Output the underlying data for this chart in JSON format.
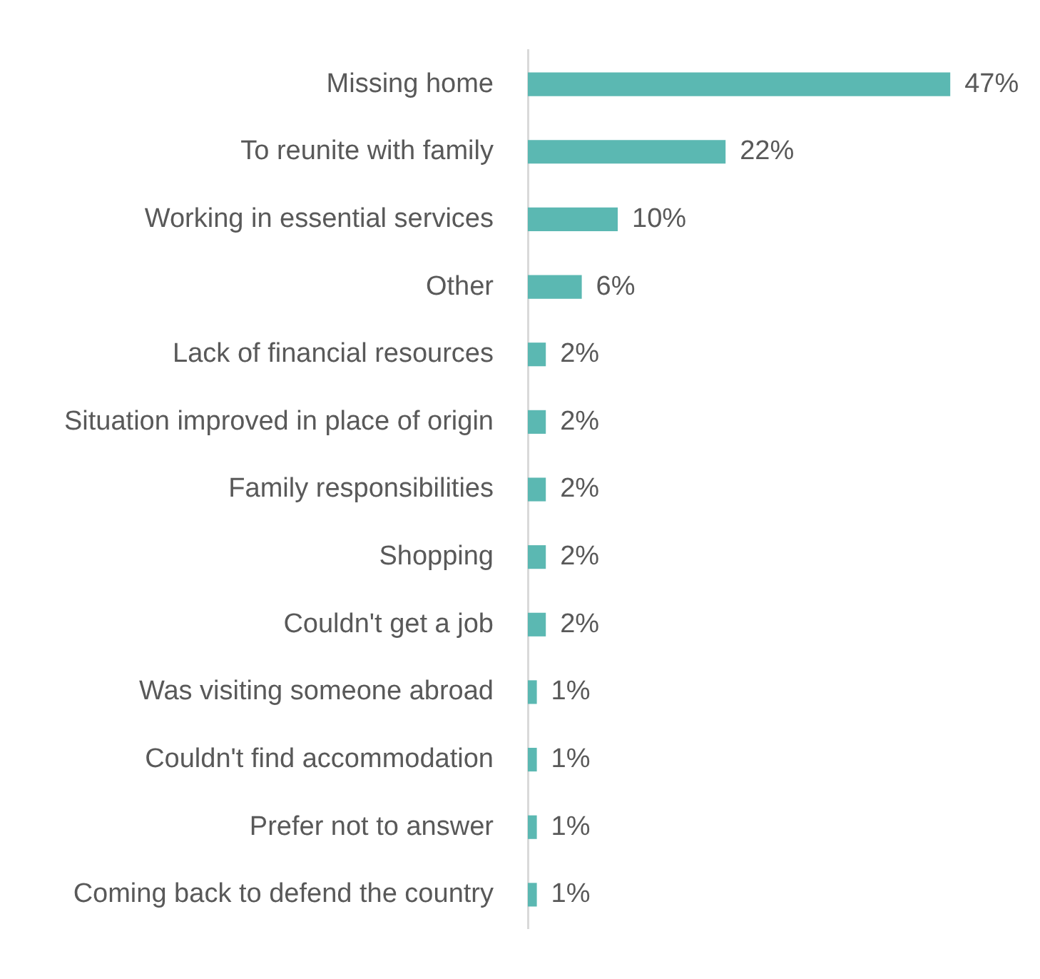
{
  "chart_data": {
    "type": "bar",
    "orientation": "horizontal",
    "categories": [
      "Missing home",
      "To reunite with family",
      "Working in essential services",
      "Other",
      "Lack of financial resources",
      "Situation improved in place of origin",
      "Family responsibilities",
      "Shopping",
      "Couldn't get a job",
      "Was visiting someone abroad",
      "Couldn't find accommodation",
      "Prefer not to answer",
      "Coming back to defend the country"
    ],
    "values": [
      47,
      22,
      10,
      6,
      2,
      2,
      2,
      2,
      2,
      1,
      1,
      1,
      1
    ],
    "value_labels": [
      "47%",
      "22%",
      "10%",
      "6%",
      "2%",
      "2%",
      "2%",
      "2%",
      "2%",
      "1%",
      "1%",
      "1%",
      "1%"
    ],
    "color": "#5bb8b2"
  }
}
